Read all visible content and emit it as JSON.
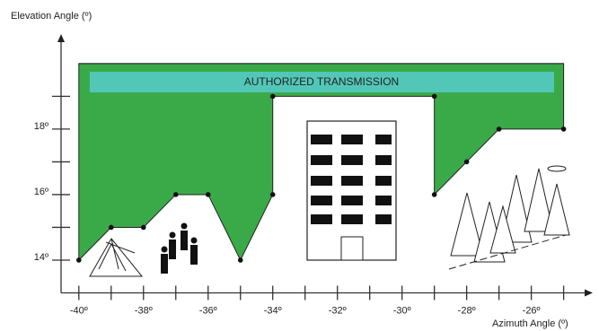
{
  "chart_data": {
    "type": "area",
    "y_label": "Elevation Angle (º)",
    "x_label": "Azimuth Angle (º)",
    "band_label": "AUTHORIZED TRANSMISSION",
    "color": "#3aaa48",
    "band_color": "#52c7b8",
    "ceiling": 20,
    "x": [
      -40,
      -39,
      -38,
      -37,
      -36,
      -35,
      -34,
      -34,
      -29,
      -29,
      -28,
      -27,
      -25
    ],
    "values": [
      14,
      15,
      15,
      16,
      16,
      14,
      16,
      19,
      19,
      16,
      17,
      18,
      18
    ],
    "xlim": [
      -40.55,
      -24.1
    ],
    "ylim": [
      13,
      20.9
    ],
    "xticks": [
      {
        "value": -40,
        "label": "-40º"
      },
      {
        "value": -38,
        "label": "-38º"
      },
      {
        "value": -36,
        "label": "-36º"
      },
      {
        "value": -34,
        "label": "-34º"
      },
      {
        "value": -32,
        "label": "-32º"
      },
      {
        "value": -30,
        "label": "-30º"
      },
      {
        "value": -28,
        "label": "-28º"
      },
      {
        "value": -26,
        "label": "-26º"
      }
    ],
    "x_minor_ticks": [
      -39,
      -37,
      -35,
      -33,
      -31,
      -29,
      -27,
      -25
    ],
    "yticks": [
      {
        "value": 14,
        "label": "14º"
      },
      {
        "value": 16,
        "label": "16º"
      },
      {
        "value": 18,
        "label": "18º"
      }
    ],
    "y_minor_ticks": [
      15,
      17,
      19
    ]
  }
}
